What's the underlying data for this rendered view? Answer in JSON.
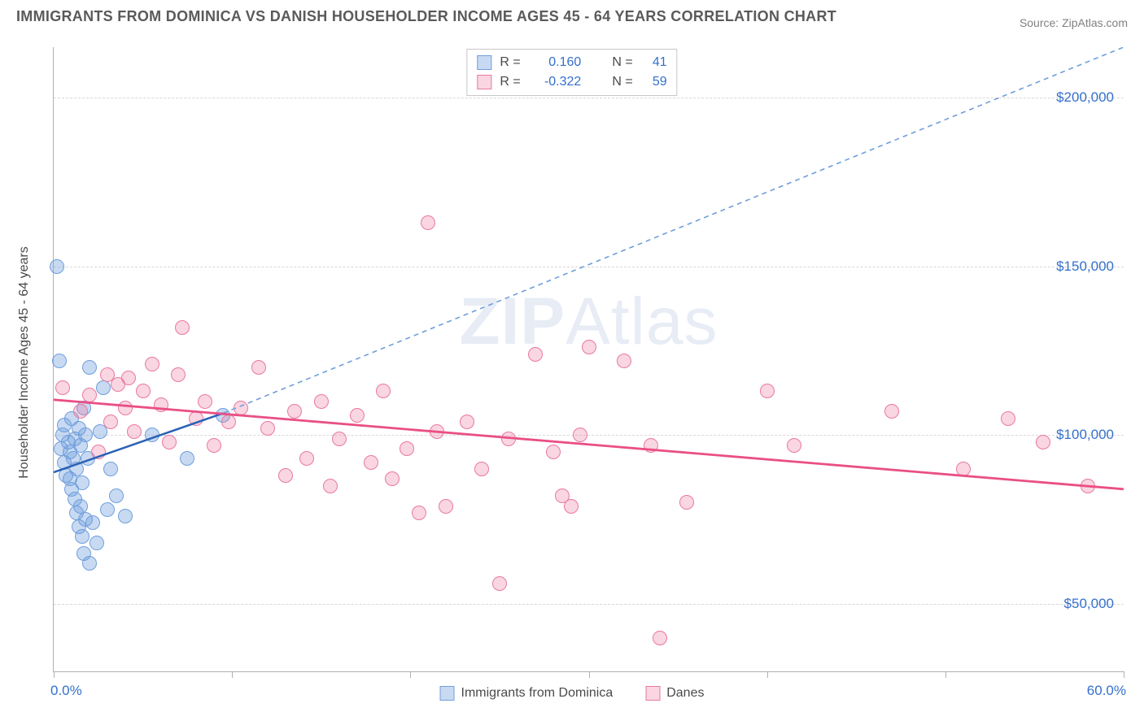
{
  "title": "IMMIGRANTS FROM DOMINICA VS DANISH HOUSEHOLDER INCOME AGES 45 - 64 YEARS CORRELATION CHART",
  "source_label": "Source: ",
  "source_name": "ZipAtlas.com",
  "ylabel": "Householder Income Ages 45 - 64 years",
  "watermark_a": "ZIP",
  "watermark_b": "Atlas",
  "chart": {
    "type": "scatter",
    "xlim": [
      0,
      60
    ],
    "ylim": [
      30000,
      215000
    ],
    "x_unit": "%",
    "xtick_positions": [
      0,
      10,
      20,
      30,
      40,
      50,
      60
    ],
    "xtick_label_left": "0.0%",
    "xtick_label_right": "60.0%",
    "yticks": [
      {
        "v": 50000,
        "label": "$50,000"
      },
      {
        "v": 100000,
        "label": "$100,000"
      },
      {
        "v": 150000,
        "label": "$150,000"
      },
      {
        "v": 200000,
        "label": "$200,000"
      }
    ],
    "grid_color": "#d8d8d8",
    "axis_color": "#b0b0b0",
    "background_color": "#ffffff",
    "point_radius": 9,
    "series": [
      {
        "key": "dominica",
        "label": "Immigrants from Dominica",
        "color_fill": "rgba(111,158,220,0.38)",
        "color_stroke": "#6f9edc",
        "R": "0.160",
        "N": "41",
        "trend": {
          "x1": 0,
          "y1": 89000,
          "x2": 9.5,
          "y2": 106500,
          "color": "#2b62b5",
          "width": 2.5,
          "dash": ""
        },
        "trend_ext": {
          "x1": 9.5,
          "y1": 106500,
          "x2": 60,
          "y2": 215000,
          "color": "#6f9edc",
          "width": 1.6,
          "dash": "6,5"
        },
        "points": [
          {
            "x": 0.2,
            "y": 150000
          },
          {
            "x": 0.3,
            "y": 122000
          },
          {
            "x": 0.4,
            "y": 96000
          },
          {
            "x": 0.5,
            "y": 100000
          },
          {
            "x": 0.6,
            "y": 103000
          },
          {
            "x": 0.6,
            "y": 92000
          },
          {
            "x": 0.7,
            "y": 88000
          },
          {
            "x": 0.8,
            "y": 98000
          },
          {
            "x": 0.9,
            "y": 95000
          },
          {
            "x": 0.9,
            "y": 87000
          },
          {
            "x": 1.0,
            "y": 105000
          },
          {
            "x": 1.0,
            "y": 84000
          },
          {
            "x": 1.1,
            "y": 93000
          },
          {
            "x": 1.2,
            "y": 99000
          },
          {
            "x": 1.2,
            "y": 81000
          },
          {
            "x": 1.3,
            "y": 90000
          },
          {
            "x": 1.3,
            "y": 77000
          },
          {
            "x": 1.4,
            "y": 102000
          },
          {
            "x": 1.4,
            "y": 73000
          },
          {
            "x": 1.5,
            "y": 97000
          },
          {
            "x": 1.5,
            "y": 79000
          },
          {
            "x": 1.6,
            "y": 86000
          },
          {
            "x": 1.6,
            "y": 70000
          },
          {
            "x": 1.7,
            "y": 108000
          },
          {
            "x": 1.7,
            "y": 65000
          },
          {
            "x": 1.8,
            "y": 100000
          },
          {
            "x": 1.8,
            "y": 75000
          },
          {
            "x": 1.9,
            "y": 93000
          },
          {
            "x": 2.0,
            "y": 62000
          },
          {
            "x": 2.0,
            "y": 120000
          },
          {
            "x": 2.2,
            "y": 74000
          },
          {
            "x": 2.4,
            "y": 68000
          },
          {
            "x": 2.6,
            "y": 101000
          },
          {
            "x": 2.8,
            "y": 114000
          },
          {
            "x": 3.0,
            "y": 78000
          },
          {
            "x": 3.2,
            "y": 90000
          },
          {
            "x": 3.5,
            "y": 82000
          },
          {
            "x": 4.0,
            "y": 76000
          },
          {
            "x": 5.5,
            "y": 100000
          },
          {
            "x": 7.5,
            "y": 93000
          },
          {
            "x": 9.5,
            "y": 106000
          }
        ]
      },
      {
        "key": "danes",
        "label": "Danes",
        "color_fill": "rgba(234,120,160,0.30)",
        "color_stroke": "#ea78a0",
        "R": "-0.322",
        "N": "59",
        "trend": {
          "x1": 0,
          "y1": 110500,
          "x2": 60,
          "y2": 84000,
          "color": "#ea4f86",
          "width": 2.8,
          "dash": ""
        },
        "points": [
          {
            "x": 0.5,
            "y": 114000
          },
          {
            "x": 1.5,
            "y": 107000
          },
          {
            "x": 2.0,
            "y": 112000
          },
          {
            "x": 2.5,
            "y": 95000
          },
          {
            "x": 3.0,
            "y": 118000
          },
          {
            "x": 3.2,
            "y": 104000
          },
          {
            "x": 3.6,
            "y": 115000
          },
          {
            "x": 4.0,
            "y": 108000
          },
          {
            "x": 4.2,
            "y": 117000
          },
          {
            "x": 4.5,
            "y": 101000
          },
          {
            "x": 5.0,
            "y": 113000
          },
          {
            "x": 5.5,
            "y": 121000
          },
          {
            "x": 6.0,
            "y": 109000
          },
          {
            "x": 6.5,
            "y": 98000
          },
          {
            "x": 7.0,
            "y": 118000
          },
          {
            "x": 7.2,
            "y": 132000
          },
          {
            "x": 8.0,
            "y": 105000
          },
          {
            "x": 8.5,
            "y": 110000
          },
          {
            "x": 9.0,
            "y": 97000
          },
          {
            "x": 9.8,
            "y": 104000
          },
          {
            "x": 10.5,
            "y": 108000
          },
          {
            "x": 11.5,
            "y": 120000
          },
          {
            "x": 12.0,
            "y": 102000
          },
          {
            "x": 13.0,
            "y": 88000
          },
          {
            "x": 13.5,
            "y": 107000
          },
          {
            "x": 14.2,
            "y": 93000
          },
          {
            "x": 15.0,
            "y": 110000
          },
          {
            "x": 15.5,
            "y": 85000
          },
          {
            "x": 16.0,
            "y": 99000
          },
          {
            "x": 17.0,
            "y": 106000
          },
          {
            "x": 17.8,
            "y": 92000
          },
          {
            "x": 18.5,
            "y": 113000
          },
          {
            "x": 19.0,
            "y": 87000
          },
          {
            "x": 19.8,
            "y": 96000
          },
          {
            "x": 20.5,
            "y": 77000
          },
          {
            "x": 21.0,
            "y": 163000
          },
          {
            "x": 21.5,
            "y": 101000
          },
          {
            "x": 22.0,
            "y": 79000
          },
          {
            "x": 23.2,
            "y": 104000
          },
          {
            "x": 24.0,
            "y": 90000
          },
          {
            "x": 25.0,
            "y": 56000
          },
          {
            "x": 25.5,
            "y": 99000
          },
          {
            "x": 27.0,
            "y": 124000
          },
          {
            "x": 28.0,
            "y": 95000
          },
          {
            "x": 28.5,
            "y": 82000
          },
          {
            "x": 29.0,
            "y": 79000
          },
          {
            "x": 29.5,
            "y": 100000
          },
          {
            "x": 30.0,
            "y": 126000
          },
          {
            "x": 32.0,
            "y": 122000
          },
          {
            "x": 33.5,
            "y": 97000
          },
          {
            "x": 34.0,
            "y": 40000
          },
          {
            "x": 35.5,
            "y": 80000
          },
          {
            "x": 40.0,
            "y": 113000
          },
          {
            "x": 41.5,
            "y": 97000
          },
          {
            "x": 47.0,
            "y": 107000
          },
          {
            "x": 51.0,
            "y": 90000
          },
          {
            "x": 53.5,
            "y": 105000
          },
          {
            "x": 55.5,
            "y": 98000
          },
          {
            "x": 58.0,
            "y": 85000
          }
        ]
      }
    ]
  },
  "stat_legend": {
    "r_label": "R  =",
    "n_label": "N  ="
  }
}
